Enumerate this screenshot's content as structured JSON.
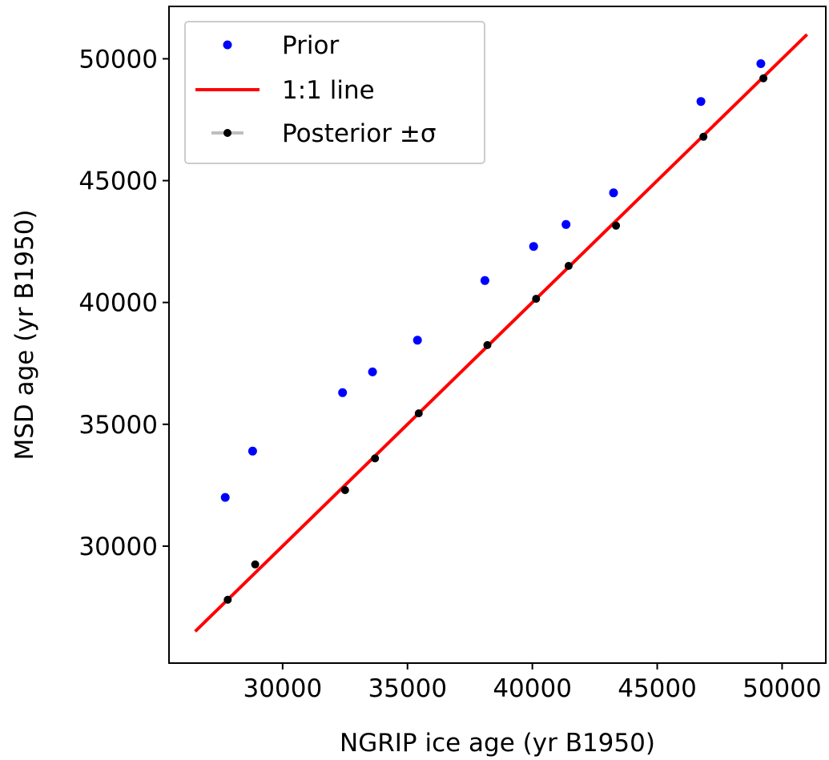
{
  "chart_data": {
    "type": "scatter",
    "title": "",
    "xlabel": "NGRIP ice age (yr B1950)",
    "ylabel": "MSD age (yr B1950)",
    "xlim": [
      25450,
      51750
    ],
    "ylim": [
      25200,
      52150
    ],
    "xticks": [
      30000,
      35000,
      40000,
      45000,
      50000
    ],
    "yticks": [
      30000,
      35000,
      40000,
      45000,
      50000
    ],
    "xtick_labels": [
      "30000",
      "35000",
      "40000",
      "45000",
      "50000"
    ],
    "ytick_labels": [
      "30000",
      "35000",
      "40000",
      "45000",
      "50000"
    ],
    "grid": false,
    "legend_position": "upper-left",
    "series": [
      {
        "name": "Prior",
        "kind": "scatter",
        "color": "#0000ff",
        "x": [
          27700,
          28800,
          32400,
          33600,
          35400,
          38100,
          40050,
          41350,
          43250,
          46750,
          49150
        ],
        "y": [
          32000,
          33900,
          36300,
          37150,
          38450,
          40900,
          42300,
          43200,
          44500,
          48250,
          49800
        ]
      },
      {
        "name": "1:1 line",
        "kind": "line",
        "color": "#ff0000",
        "x": [
          26500,
          51000
        ],
        "y": [
          26500,
          51000
        ]
      },
      {
        "name": "Posterior ±σ",
        "kind": "scatter",
        "color": "#000000",
        "errorbar_color": "#bfbfbf",
        "x": [
          27800,
          28900,
          32500,
          33700,
          35450,
          38200,
          40150,
          41450,
          43350,
          46850,
          49250
        ],
        "y": [
          27800,
          29250,
          32300,
          33600,
          35450,
          38250,
          40150,
          41500,
          43150,
          46800,
          49200
        ]
      }
    ]
  },
  "legend": {
    "items": [
      {
        "label": "Prior",
        "color": "#0000ff"
      },
      {
        "label": "1:1 line",
        "color": "#ff0000"
      },
      {
        "label": "Posterior ±σ",
        "color": "#000000"
      }
    ]
  }
}
